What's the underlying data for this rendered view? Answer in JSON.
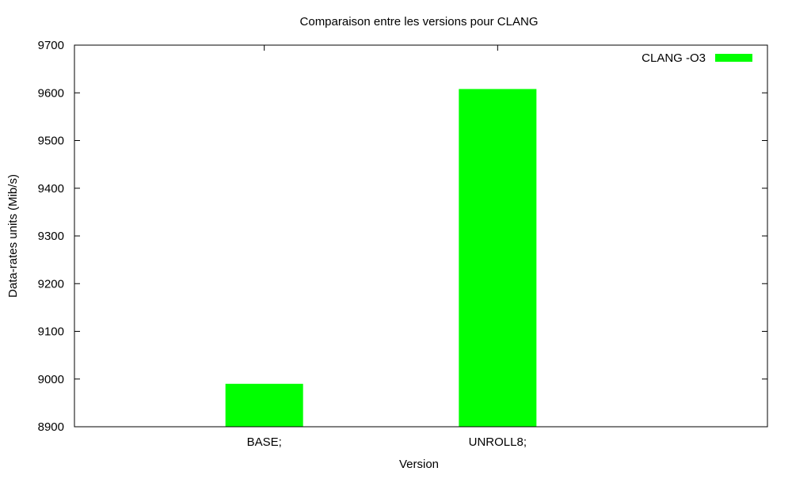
{
  "chart_data": {
    "type": "bar",
    "title": "Comparaison entre les versions pour CLANG",
    "xlabel": "Version",
    "ylabel": "Data-rates units (Mib/s)",
    "categories": [
      "BASE;",
      "UNROLL8;"
    ],
    "series": [
      {
        "name": "CLANG -O3",
        "values": [
          8990,
          9608
        ],
        "color": "#00ff00"
      }
    ],
    "ylim": [
      8900,
      9700
    ],
    "yticks": [
      8900,
      9000,
      9100,
      9200,
      9300,
      9400,
      9500,
      9600,
      9700
    ],
    "grid": false,
    "legend_position": "top-right"
  }
}
